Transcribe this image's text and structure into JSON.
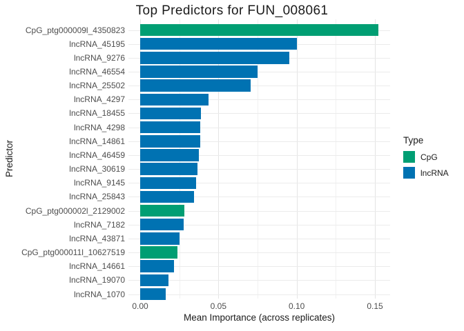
{
  "title": "Top Predictors for FUN_008061",
  "axes": {
    "x_label": "Mean Importance (across replicates)",
    "y_label": "Predictor",
    "x_tick_labels": [
      "0.00",
      "0.05",
      "0.10",
      "0.15"
    ]
  },
  "legend": {
    "title": "Type",
    "items": [
      {
        "label": "CpG",
        "color": "#009E73"
      },
      {
        "label": "lncRNA",
        "color": "#0072B2"
      }
    ]
  },
  "chart_data": {
    "type": "bar",
    "orientation": "horizontal",
    "title": "Top Predictors for FUN_008061",
    "xlabel": "Mean Importance (across replicates)",
    "ylabel": "Predictor",
    "xlim": [
      0,
      0.16
    ],
    "x_major_ticks": [
      0,
      0.05,
      0.1,
      0.15
    ],
    "x_minor_gridlines": [
      0.025,
      0.075,
      0.125
    ],
    "grid": true,
    "legend_position": "right",
    "series_colors": {
      "CpG": "#009E73",
      "lncRNA": "#0072B2"
    },
    "bars": [
      {
        "predictor": "CpG_ptg000009l_4350823",
        "type": "CpG",
        "value": 0.152
      },
      {
        "predictor": "lncRNA_45195",
        "type": "lncRNA",
        "value": 0.1
      },
      {
        "predictor": "lncRNA_9276",
        "type": "lncRNA",
        "value": 0.0955
      },
      {
        "predictor": "lncRNA_46554",
        "type": "lncRNA",
        "value": 0.0752
      },
      {
        "predictor": "lncRNA_25502",
        "type": "lncRNA",
        "value": 0.0708
      },
      {
        "predictor": "lncRNA_4297",
        "type": "lncRNA",
        "value": 0.0437
      },
      {
        "predictor": "lncRNA_18455",
        "type": "lncRNA",
        "value": 0.039
      },
      {
        "predictor": "lncRNA_4298",
        "type": "lncRNA",
        "value": 0.0386
      },
      {
        "predictor": "lncRNA_14861",
        "type": "lncRNA",
        "value": 0.0383
      },
      {
        "predictor": "lncRNA_46459",
        "type": "lncRNA",
        "value": 0.0375
      },
      {
        "predictor": "lncRNA_30619",
        "type": "lncRNA",
        "value": 0.0366
      },
      {
        "predictor": "lncRNA_9145",
        "type": "lncRNA",
        "value": 0.0359
      },
      {
        "predictor": "lncRNA_25843",
        "type": "lncRNA",
        "value": 0.0343
      },
      {
        "predictor": "CpG_ptg000002l_2129002",
        "type": "CpG",
        "value": 0.0281
      },
      {
        "predictor": "lncRNA_7182",
        "type": "lncRNA",
        "value": 0.0277
      },
      {
        "predictor": "lncRNA_43871",
        "type": "lncRNA",
        "value": 0.0252
      },
      {
        "predictor": "CpG_ptg000011l_10627519",
        "type": "CpG",
        "value": 0.0238
      },
      {
        "predictor": "lncRNA_14661",
        "type": "lncRNA",
        "value": 0.0217
      },
      {
        "predictor": "lncRNA_19070",
        "type": "lncRNA",
        "value": 0.0181
      },
      {
        "predictor": "lncRNA_1070",
        "type": "lncRNA",
        "value": 0.0163
      }
    ]
  }
}
